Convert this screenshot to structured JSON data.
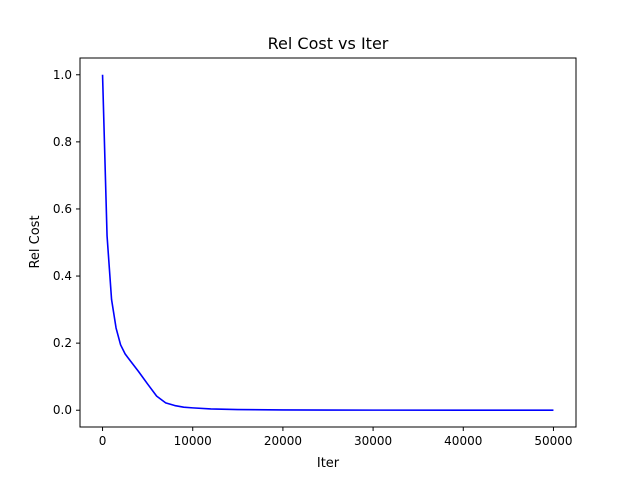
{
  "chart_data": {
    "type": "line",
    "title": "Rel Cost vs Iter",
    "xlabel": "Iter",
    "ylabel": "Rel Cost",
    "xlim": [
      -2500,
      52500
    ],
    "ylim": [
      -0.05,
      1.05
    ],
    "xticks": [
      0,
      10000,
      20000,
      30000,
      40000,
      50000
    ],
    "xtick_labels": [
      "0",
      "10000",
      "20000",
      "30000",
      "40000",
      "50000"
    ],
    "yticks": [
      0.0,
      0.2,
      0.4,
      0.6,
      0.8,
      1.0
    ],
    "ytick_labels": [
      "0.0",
      "0.2",
      "0.4",
      "0.6",
      "0.8",
      "1.0"
    ],
    "grid": false,
    "legend": false,
    "series": [
      {
        "color": "#0000ff",
        "x": [
          0,
          500,
          1000,
          1500,
          2000,
          2500,
          3000,
          4000,
          5000,
          6000,
          7000,
          8000,
          9000,
          10000,
          12000,
          15000,
          20000,
          25000,
          30000,
          40000,
          50000
        ],
        "y": [
          1.0,
          0.52,
          0.33,
          0.245,
          0.195,
          0.168,
          0.15,
          0.115,
          0.078,
          0.042,
          0.022,
          0.014,
          0.009,
          0.007,
          0.004,
          0.002,
          0.001,
          0.0005,
          0.0003,
          0.0001,
          0.0
        ]
      }
    ]
  }
}
